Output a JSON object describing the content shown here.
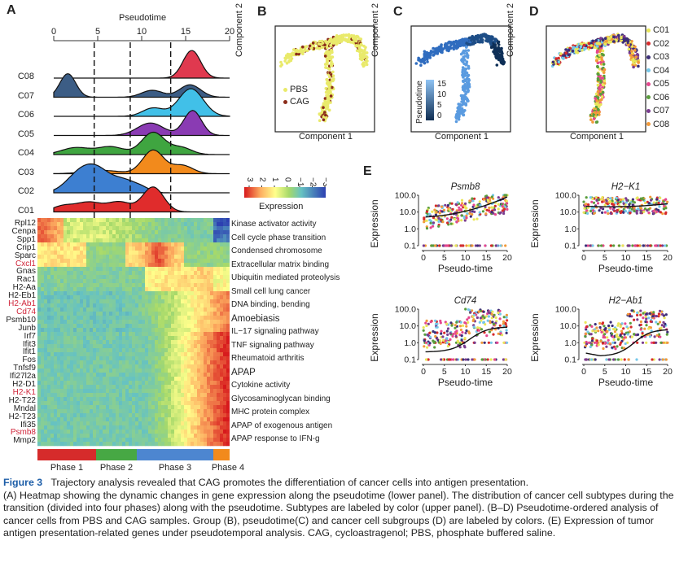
{
  "panels": {
    "A": "A",
    "B": "B",
    "C": "C",
    "D": "D",
    "E": "E"
  },
  "ridge": {
    "title": "Pseudotime",
    "ticks": [
      "0",
      "5",
      "10",
      "15",
      "20"
    ],
    "rows": [
      {
        "name": "C08",
        "color": "#e0394f",
        "peaks": [
          [
            15.7,
            1.0,
            1.0
          ]
        ]
      },
      {
        "name": "C07",
        "color": "#3c5d85",
        "peaks": [
          [
            1.6,
            0.85,
            0.9
          ],
          [
            11.2,
            0.25,
            1.2
          ],
          [
            15.5,
            0.45,
            1.2
          ]
        ]
      },
      {
        "name": "C06",
        "color": "#41c0e8",
        "peaks": [
          [
            11.3,
            0.3,
            1.2
          ],
          [
            15.6,
            1.0,
            1.4
          ]
        ]
      },
      {
        "name": "C05",
        "color": "#8a3bb3",
        "peaks": [
          [
            11.0,
            0.45,
            1.5
          ],
          [
            15.8,
            0.9,
            1.0
          ]
        ]
      },
      {
        "name": "C04",
        "color": "#3fa540",
        "peaks": [
          [
            2.5,
            0.25,
            1.6
          ],
          [
            6.5,
            0.28,
            1.5
          ],
          [
            11.3,
            0.8,
            1.3
          ],
          [
            14.5,
            0.25,
            1.2
          ]
        ]
      },
      {
        "name": "C03",
        "color": "#f28a1c",
        "peaks": [
          [
            5.5,
            0.12,
            2.0
          ],
          [
            11.3,
            0.85,
            1.2
          ],
          [
            14.6,
            0.3,
            1.2
          ]
        ]
      },
      {
        "name": "C02",
        "color": "#3d7fd1",
        "peaks": [
          [
            2.8,
            0.6,
            1.5
          ],
          [
            5.0,
            0.75,
            1.5
          ],
          [
            8.0,
            0.4,
            1.3
          ],
          [
            10.0,
            0.15,
            1.0
          ]
        ]
      },
      {
        "name": "C01",
        "color": "#e02c2c",
        "peaks": [
          [
            1.0,
            0.2,
            1.2
          ],
          [
            4.0,
            0.35,
            1.5
          ],
          [
            7.5,
            0.35,
            1.3
          ],
          [
            11.3,
            0.9,
            1.2
          ]
        ]
      }
    ]
  },
  "heatmap": {
    "legend_title": "Expression",
    "legend_ticks": [
      "3",
      "2",
      "1",
      "0",
      "−1",
      "−2",
      "−3"
    ],
    "genes": [
      {
        "label": "Rpl12",
        "red": false
      },
      {
        "label": "Cenpa",
        "red": false
      },
      {
        "label": "Spp1",
        "red": false
      },
      {
        "label": "Crip1",
        "red": false
      },
      {
        "label": "Sparc",
        "red": false
      },
      {
        "label": "Cxcl1",
        "red": true
      },
      {
        "label": "Gnas",
        "red": false
      },
      {
        "label": "Rac1",
        "red": false
      },
      {
        "label": "H2-Aa",
        "red": false
      },
      {
        "label": "H2-Eb1",
        "red": false
      },
      {
        "label": "H2-Ab1",
        "red": true
      },
      {
        "label": "Cd74",
        "red": true
      },
      {
        "label": "Psmb10",
        "red": false
      },
      {
        "label": "Junb",
        "red": false
      },
      {
        "label": "Irf7",
        "red": false
      },
      {
        "label": "Ifit3",
        "red": false
      },
      {
        "label": "Ifit1",
        "red": false
      },
      {
        "label": "Fos",
        "red": false
      },
      {
        "label": "Tnfsf9",
        "red": false
      },
      {
        "label": "Ifi27l2a",
        "red": false
      },
      {
        "label": "H2-D1",
        "red": false
      },
      {
        "label": "H2-K1",
        "red": true
      },
      {
        "label": "H2-T22",
        "red": false
      },
      {
        "label": "Mndal",
        "red": false
      },
      {
        "label": "H2-T23",
        "red": false
      },
      {
        "label": "Ifi35",
        "red": false
      },
      {
        "label": "Psmb8",
        "red": true
      },
      {
        "label": "Mmp2",
        "red": false
      }
    ],
    "terms": [
      {
        "label": "Kinase activator activity",
        "big": false
      },
      {
        "label": "Cell cycle phase transition",
        "big": false
      },
      {
        "label": "Condensed chromosome",
        "big": false
      },
      {
        "label": "Extracellular matrix binding",
        "big": false
      },
      {
        "label": "Ubiquitin mediated proteolysis",
        "big": false
      },
      {
        "label": "Small cell lung cancer",
        "big": false
      },
      {
        "label": "DNA binding, bending",
        "big": false
      },
      {
        "label": "Amoebiasis",
        "big": true
      },
      {
        "label": "IL−17 signaling pathway",
        "big": false
      },
      {
        "label": "TNF signaling pathway",
        "big": false
      },
      {
        "label": "Rheumatoid arthritis",
        "big": false
      },
      {
        "label": "APAP",
        "big": true
      },
      {
        "label": "Cytokine activity",
        "big": false
      },
      {
        "label": "Glycosaminoglycan binding",
        "big": false
      },
      {
        "label": "MHC protein complex",
        "big": false
      },
      {
        "label": "APAP of exogenous antigen",
        "big": false
      },
      {
        "label": "APAP response to IFN-g",
        "big": false
      }
    ],
    "phases": [
      {
        "label": "Phase 1",
        "color": "#d62b2b"
      },
      {
        "label": "Phase 2",
        "color": "#47a844"
      },
      {
        "label": "Phase 3",
        "color": "#4d86d0"
      },
      {
        "label": "Phase 4",
        "color": "#f28a1c"
      }
    ]
  },
  "trajectory": {
    "xlabel": "Component 1",
    "ylabel": "Component 2",
    "B_legend": [
      {
        "label": "PBS",
        "color": "#e9ea6b"
      },
      {
        "label": "CAG",
        "color": "#8b2c1a"
      }
    ],
    "C_legend_title": "Pseudotime",
    "C_legend_ticks": [
      "15",
      "10",
      "5",
      "0"
    ],
    "D_legend": [
      {
        "label": "C01",
        "color": "#e9e75a"
      },
      {
        "label": "C02",
        "color": "#d62b2b"
      },
      {
        "label": "C03",
        "color": "#3c2e78"
      },
      {
        "label": "C04",
        "color": "#75c8ea"
      },
      {
        "label": "C05",
        "color": "#e5478e"
      },
      {
        "label": "C06",
        "color": "#5a9d3c"
      },
      {
        "label": "C07",
        "color": "#7a3c8f"
      },
      {
        "label": "C08",
        "color": "#f29a3a"
      }
    ]
  },
  "expression_plots": {
    "xlabel": "Pseudo-time",
    "ylabel": "Expression",
    "xticks": [
      "0",
      "5",
      "10",
      "15",
      "20"
    ],
    "yticks": [
      "100.0",
      "10.0",
      "1.0",
      "0.1"
    ],
    "genes": [
      "Psmb8",
      "H2−K1",
      "Cd74",
      "H2−Ab1"
    ]
  },
  "caption": {
    "figure": "Figure 3",
    "title": "Trajectory analysis revealed that CAG promotes the differentiation of cancer cells into antigen presentation.",
    "text": "(A) Heatmap showing the dynamic changes in gene expression along the pseudotime (lower panel). The distribution of cancer cell subtypes during the transition (divided into four phases) along with the pseudotime. Subtypes are labeled by color (upper panel). (B–D) Pseudotime-ordered analysis of cancer cells from PBS and CAG samples. Group (B), pseudotime(C) and cancer cell subgroups (D) are labeled by colors. (E) Expression of tumor antigen presentation-related genes under pseudotemporal analysis. CAG, cycloastragenol; PBS, phosphate buffered saline."
  }
}
